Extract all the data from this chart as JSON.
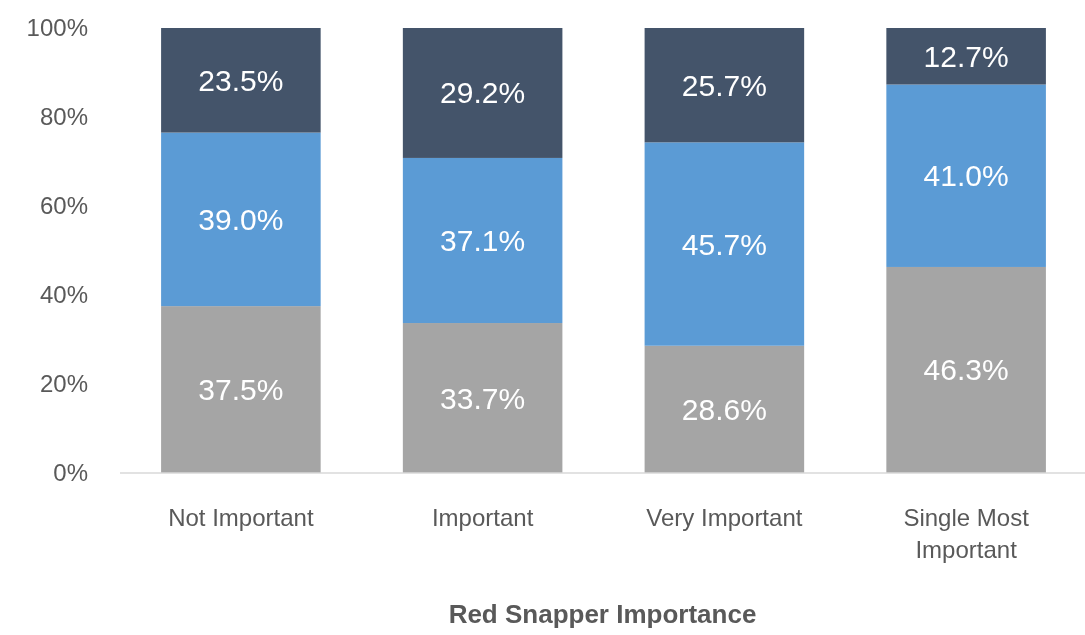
{
  "chart_data": {
    "type": "bar",
    "stacked": true,
    "xlabel": "Red Snapper Importance",
    "categories": [
      "Not Important",
      "Important",
      "Very Important",
      "Single Most Important"
    ],
    "series": [
      {
        "color": "#a5a5a5",
        "values": [
          37.5,
          33.7,
          28.6,
          46.3
        ],
        "value_labels": [
          "37.5%",
          "33.7%",
          "28.6%",
          "46.3%"
        ]
      },
      {
        "color": "#5b9bd5",
        "values": [
          39.0,
          37.1,
          45.7,
          41.0
        ],
        "value_labels": [
          "39.0%",
          "37.1%",
          "45.7%",
          "41.0%"
        ]
      },
      {
        "color": "#44546a",
        "values": [
          23.5,
          29.2,
          25.7,
          12.7
        ],
        "value_labels": [
          "23.5%",
          "29.2%",
          "25.7%",
          "12.7%"
        ]
      }
    ],
    "ylim": [
      0,
      100
    ],
    "yticks": [
      {
        "value": 0,
        "label": "0%"
      },
      {
        "value": 20,
        "label": "20%"
      },
      {
        "value": 40,
        "label": "40%"
      },
      {
        "value": 60,
        "label": "60%"
      },
      {
        "value": 80,
        "label": "80%"
      },
      {
        "value": 100,
        "label": "100%"
      }
    ],
    "grid": false
  }
}
